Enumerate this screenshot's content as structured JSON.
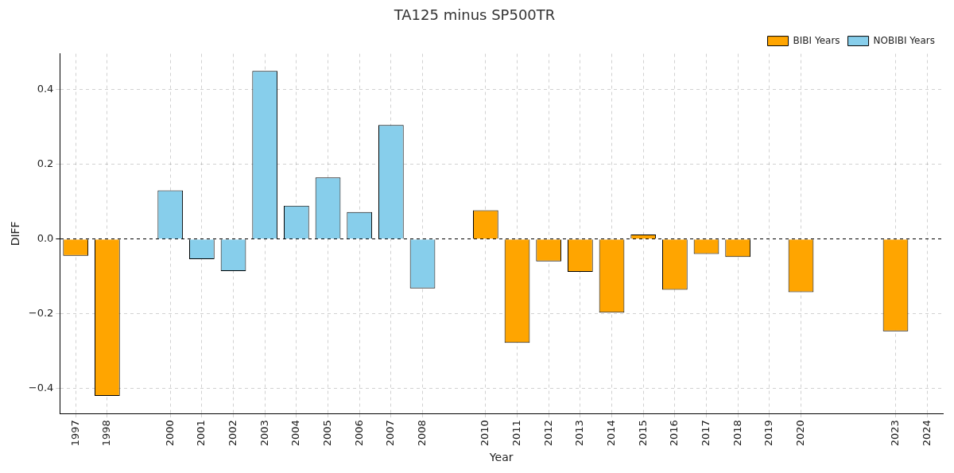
{
  "chart_data": {
    "type": "bar",
    "title": "TA125 minus SP500TR",
    "x_label": "Year",
    "y_label": "DIFF",
    "categories": [
      "1997",
      "1998",
      null,
      "2000",
      "2001",
      "2002",
      "2003",
      "2004",
      "2005",
      "2006",
      "2007",
      "2008",
      null,
      "2010",
      "2011",
      "2012",
      "2013",
      "2014",
      "2015",
      "2016",
      "2017",
      "2018",
      "2019",
      "2020",
      null,
      null,
      "2023",
      "2024"
    ],
    "series": [
      {
        "name": "BIBI Years",
        "color": "#ffa500",
        "values": [
          -0.045,
          -0.42,
          null,
          null,
          null,
          null,
          null,
          null,
          null,
          null,
          null,
          null,
          null,
          0.077,
          -0.278,
          -0.06,
          -0.088,
          -0.197,
          0.012,
          -0.136,
          -0.04,
          -0.048,
          -0.001,
          -0.142,
          null,
          null,
          -0.247,
          -0.001
        ]
      },
      {
        "name": "NOBIBI Years",
        "color": "#87ceeb",
        "values": [
          null,
          null,
          null,
          0.13,
          -0.054,
          -0.086,
          0.45,
          0.089,
          0.165,
          0.072,
          0.305,
          -0.132,
          null,
          null,
          null,
          null,
          null,
          null,
          null,
          null,
          null,
          null,
          null,
          null,
          null,
          null,
          null,
          null
        ]
      }
    ],
    "ylim": [
      -0.467,
      0.496
    ],
    "yticks": [
      {
        "value": -0.4,
        "label": "−0.4"
      },
      {
        "value": -0.2,
        "label": "−0.2"
      },
      {
        "value": 0,
        "label": "0.0"
      },
      0.2,
      0.4
    ],
    "grid": true,
    "legend": "upper right"
  }
}
